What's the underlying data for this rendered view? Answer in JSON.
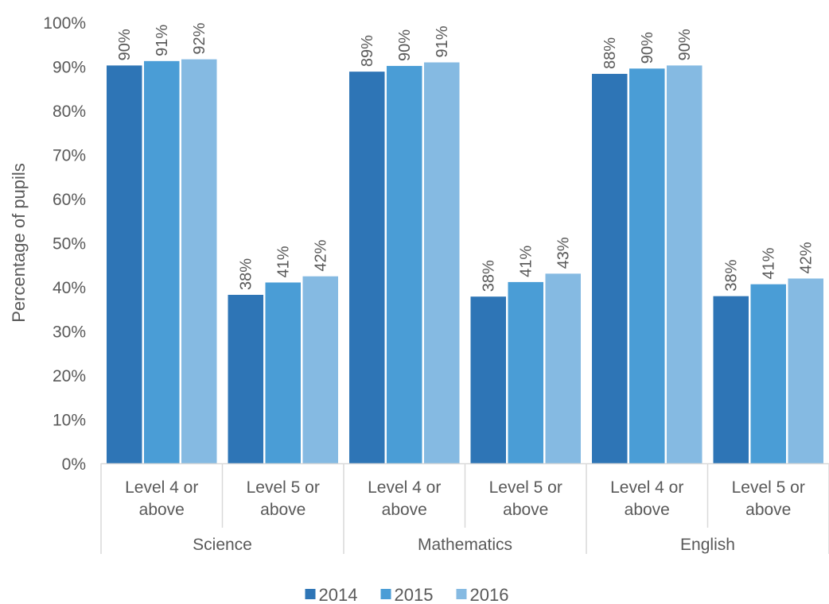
{
  "chart_data": {
    "type": "bar",
    "title": "",
    "ylabel": "Percentage of pupils",
    "xlabel": "",
    "ylim": [
      0,
      100
    ],
    "y_ticks": [
      "0%",
      "10%",
      "20%",
      "30%",
      "40%",
      "50%",
      "60%",
      "70%",
      "80%",
      "90%",
      "100%"
    ],
    "grid": false,
    "legend_position": "bottom",
    "groups": [
      {
        "name": "Science",
        "categories": [
          "Level 4 or above",
          "Level 5 or above"
        ]
      },
      {
        "name": "Mathematics",
        "categories": [
          "Level 4 or above",
          "Level 5 or above"
        ]
      },
      {
        "name": "English",
        "categories": [
          "Level 4 or above",
          "Level 5 or above"
        ]
      }
    ],
    "series": [
      {
        "name": "2014",
        "color": "#2E75B6",
        "values": [
          90.2,
          38.2,
          88.8,
          37.8,
          88.3,
          37.9
        ],
        "labels": [
          "90%",
          "38%",
          "89%",
          "38%",
          "88%",
          "38%"
        ]
      },
      {
        "name": "2015",
        "color": "#4A9DD6",
        "values": [
          91.2,
          41.0,
          90.1,
          41.1,
          89.5,
          40.6
        ],
        "labels": [
          "91%",
          "41%",
          "90%",
          "41%",
          "90%",
          "41%"
        ]
      },
      {
        "name": "2016",
        "color": "#85BAE2",
        "values": [
          91.6,
          42.4,
          90.9,
          43.0,
          90.2,
          41.9
        ],
        "labels": [
          "92%",
          "42%",
          "91%",
          "43%",
          "90%",
          "42%"
        ]
      }
    ]
  }
}
